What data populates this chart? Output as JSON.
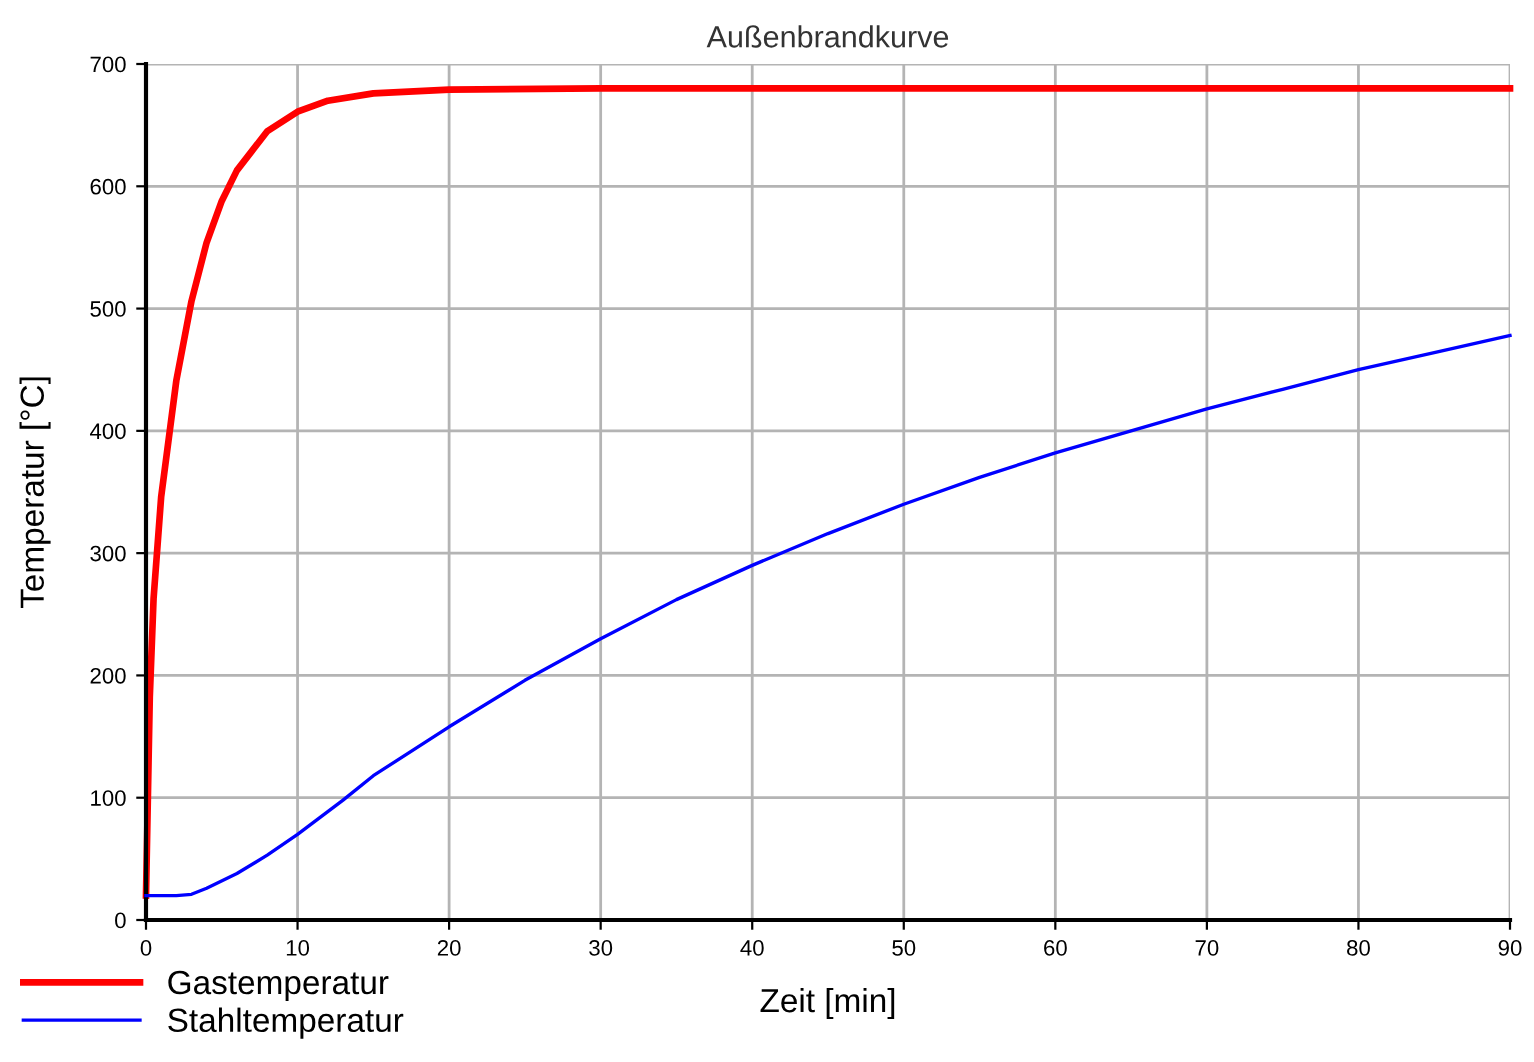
{
  "chart_data": {
    "type": "line",
    "title": "Außenbrandkurve",
    "xlabel": "Zeit [min]",
    "ylabel": "Temperatur [°C]",
    "xlim": [
      0,
      90
    ],
    "ylim": [
      0,
      700
    ],
    "xticks": [
      0,
      10,
      20,
      30,
      40,
      50,
      60,
      70,
      80,
      90
    ],
    "yticks": [
      0,
      100,
      200,
      300,
      400,
      500,
      600,
      700
    ],
    "grid": true,
    "legend": "bottom left",
    "marker": "none",
    "line_style": "solid",
    "series": [
      {
        "name": "Gastemperatur",
        "color": "#ff0000",
        "x": [
          0,
          0.25,
          0.5,
          1,
          2,
          3,
          4,
          5,
          6,
          8,
          10,
          12,
          15,
          20,
          30,
          40,
          50,
          60,
          70,
          80,
          90
        ],
        "values": [
          20,
          182,
          263,
          346,
          441,
          506,
          554,
          588,
          613,
          645,
          661,
          670,
          676,
          679,
          680,
          680,
          680,
          680,
          680,
          680,
          680
        ]
      },
      {
        "name": "Stahltemperatur",
        "color": "#0000ff",
        "x": [
          0,
          2,
          3,
          4,
          6,
          8,
          10,
          13,
          15,
          20,
          25,
          30,
          35,
          40,
          45,
          50,
          55,
          60,
          65,
          70,
          75,
          80,
          85,
          90
        ],
        "values": [
          20,
          20,
          21,
          26,
          38,
          53,
          70,
          98,
          118,
          158,
          196,
          230,
          262,
          290,
          316,
          340,
          362,
          382,
          400,
          418,
          434,
          450,
          464,
          478
        ]
      }
    ]
  }
}
